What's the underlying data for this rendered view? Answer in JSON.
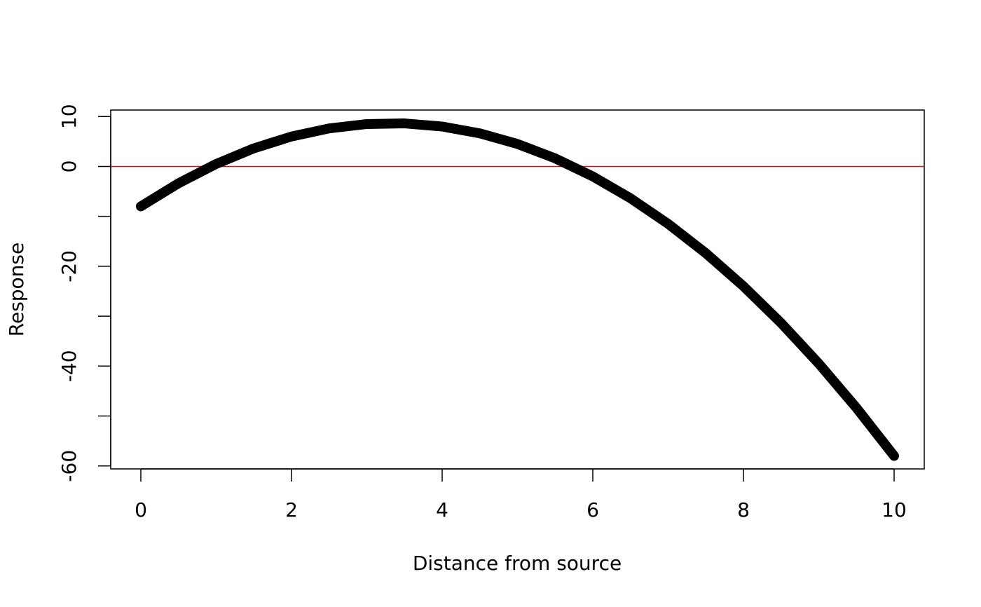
{
  "chart_data": {
    "type": "line",
    "x_label": "Distance from source",
    "y_label": "Response",
    "x": [
      0,
      0.5,
      1,
      1.5,
      2,
      2.5,
      3,
      3.5,
      4,
      4.5,
      5,
      5.5,
      6,
      6.5,
      7,
      7.5,
      8,
      8.5,
      9,
      9.5,
      10
    ],
    "series": [
      {
        "color": "#000000",
        "values": [
          -8,
          -3.375,
          0.5,
          3.625,
          6,
          7.625,
          8.5,
          8.625,
          8,
          6.625,
          4.5,
          1.625,
          -2,
          -6.375,
          -11.5,
          -17.375,
          -24,
          -31.375,
          -39.5,
          -48.375,
          -58
        ]
      }
    ],
    "hline": {
      "value": 0,
      "color": "#ff0000"
    },
    "xlim": [
      -0.4,
      10.4
    ],
    "ylim": [
      -60.6,
      11.3
    ],
    "xticks": [
      0,
      2,
      4,
      6,
      8,
      10
    ],
    "yticks": [
      10,
      0,
      -20,
      -40,
      -60
    ],
    "yticks_unlabeled": [
      -10,
      -30,
      -50
    ]
  }
}
